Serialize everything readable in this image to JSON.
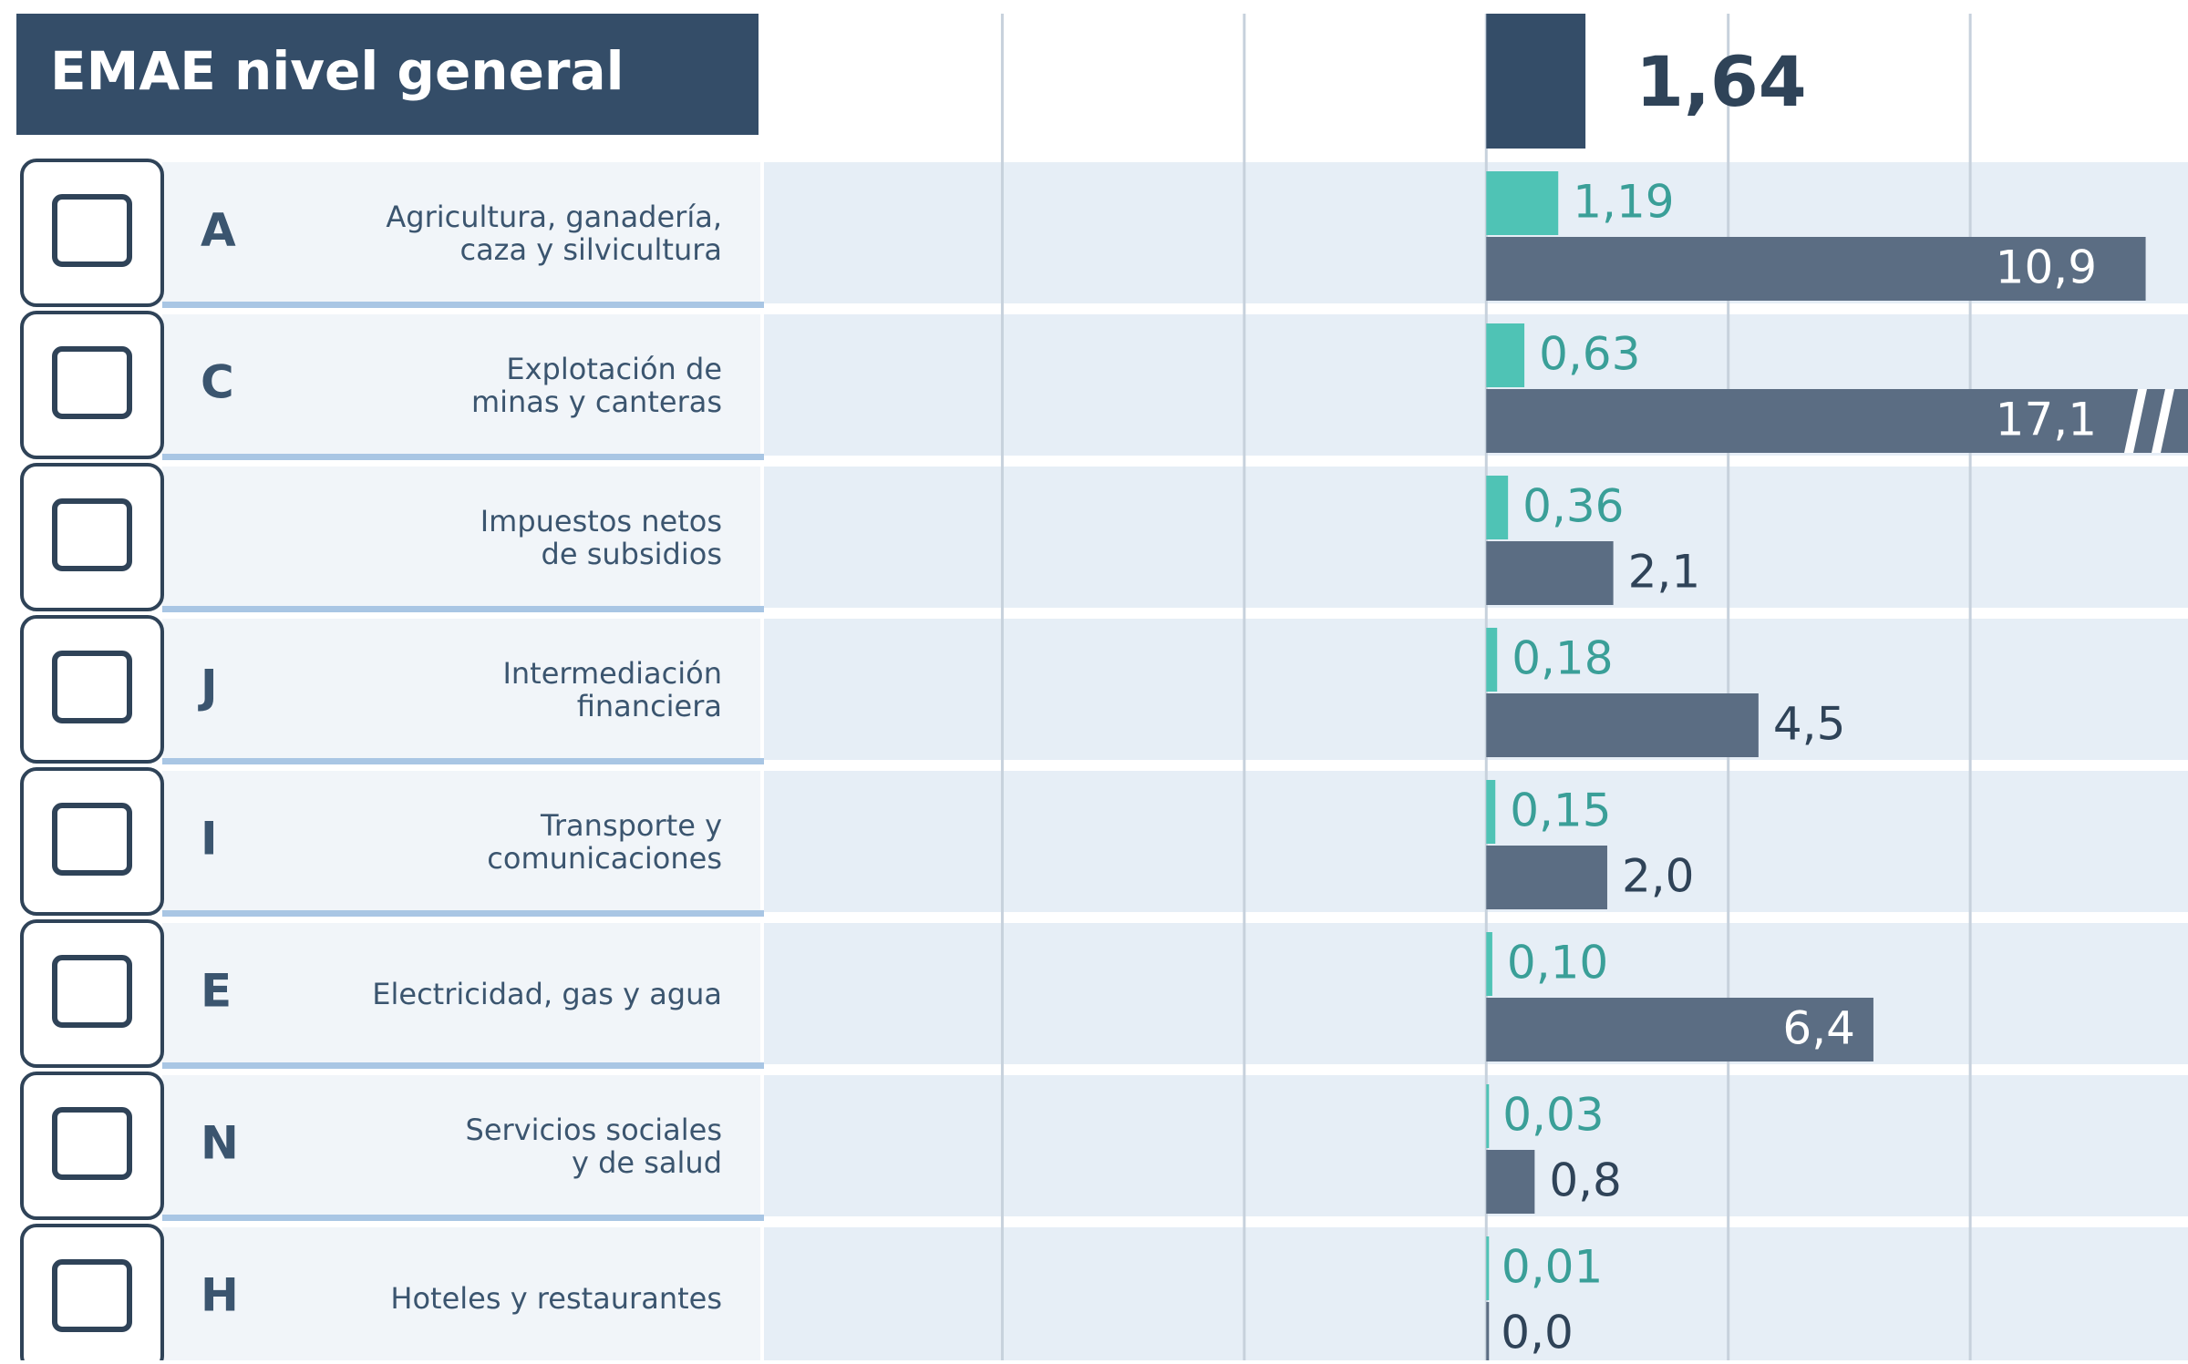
{
  "chart_data": {
    "type": "bar",
    "title": "EMAE nivel general",
    "total_value": 1.64,
    "total_value_label": "1,64",
    "total_color": "#344d68",
    "codes": [
      "A",
      "C",
      null,
      "J",
      "I",
      "E",
      "N",
      "H"
    ],
    "categories": [
      [
        "Agricultura, ganadería,",
        "caza y silvicultura"
      ],
      [
        "Explotación de",
        "minas y canteras"
      ],
      [
        "Impuestos netos",
        "de subsidios"
      ],
      [
        "Intermediación",
        "financiera"
      ],
      [
        "Transporte y",
        "comunicaciones"
      ],
      [
        "Electricidad, gas y agua"
      ],
      [
        "Servicios sociales",
        "y de salud"
      ],
      [
        "Hoteles y restaurantes"
      ]
    ],
    "series": [
      {
        "color": "#4fc3b5",
        "values": [
          1.19,
          0.63,
          0.36,
          0.18,
          0.15,
          0.1,
          0.03,
          0.01
        ],
        "value_labels": [
          "1,19",
          "0,63",
          "0,36",
          "0,18",
          "0,15",
          "0,10",
          "0,03",
          "0,01"
        ]
      },
      {
        "color": "#5b6d83",
        "values": [
          10.9,
          17.1,
          2.1,
          4.5,
          2.0,
          6.4,
          0.8,
          0.0
        ],
        "value_labels": [
          "10,9",
          "17,1",
          "2,1",
          "4,5",
          "2,0",
          "6,4",
          "0,8",
          "0,0"
        ]
      }
    ],
    "xlim": [
      -12,
      11.6
    ],
    "xticks": [
      -8,
      -4,
      0,
      4,
      8
    ],
    "grid": true
  }
}
